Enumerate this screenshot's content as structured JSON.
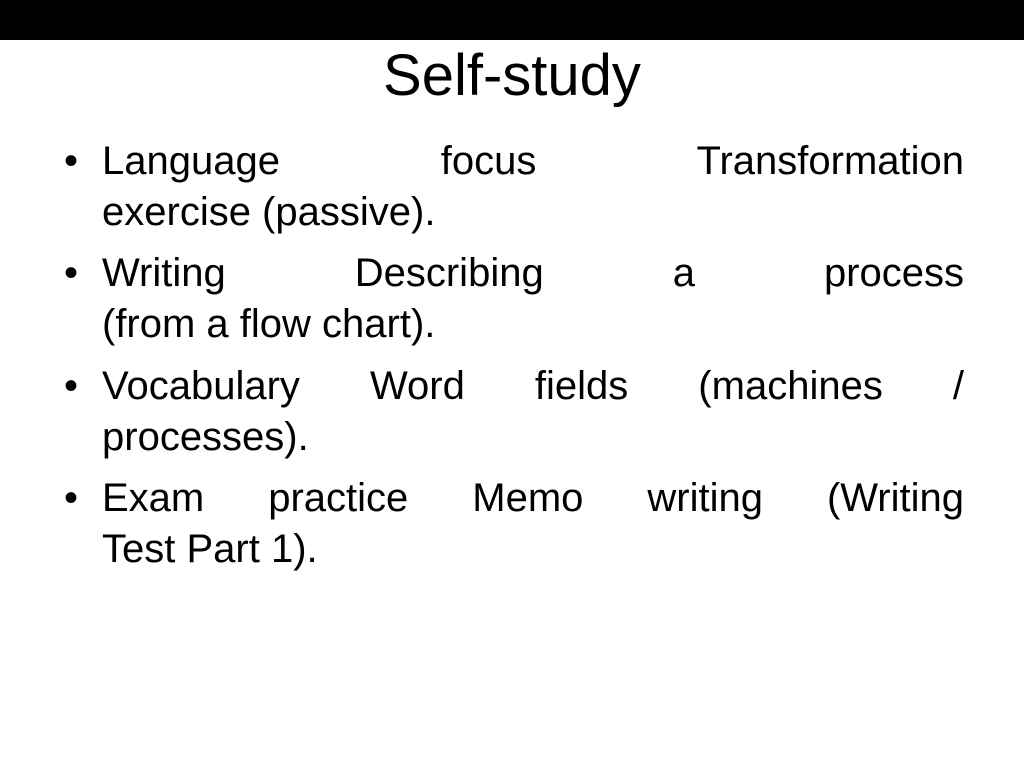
{
  "slide": {
    "title": "Self-study",
    "bullets": [
      {
        "line1": "Language focus Transformation",
        "line2": "exercise (passive)."
      },
      {
        "line1": "Writing Describing a process",
        "line2": "(from a flow chart)."
      },
      {
        "line1": "Vocabulary Word fields (machines /",
        "line2": "processes)."
      },
      {
        "line1": "Exam practice Memo writing (Writing",
        "line2": "Test Part 1)."
      }
    ],
    "colors": {
      "background": "#ffffff",
      "top_bar": "#000000",
      "text": "#000000"
    },
    "typography": {
      "title_fontsize": 58,
      "bullet_fontsize": 40,
      "font_family": "Arial"
    }
  }
}
